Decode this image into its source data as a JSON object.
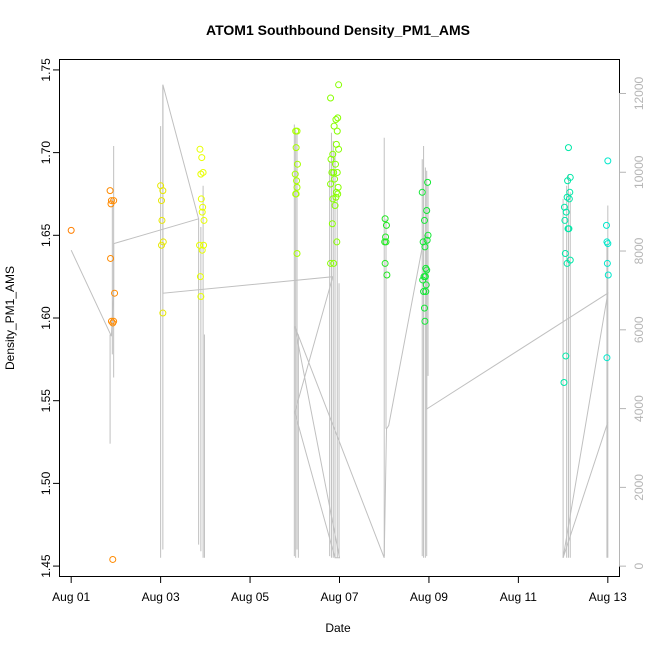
{
  "chart_data": {
    "type": "scatter",
    "title": "ATOM1 Southbound Density_PM1_AMS",
    "xlabel": "Date",
    "ylabel": "Density_PM1_AMS",
    "x_unit": "days (Aug 01 = 1)",
    "xlim": [
      0.75,
      13.25
    ],
    "ylim": [
      1.444,
      1.756
    ],
    "x_ticks": [
      {
        "label": "Aug 01",
        "value": 1
      },
      {
        "label": "Aug 03",
        "value": 3
      },
      {
        "label": "Aug 05",
        "value": 5
      },
      {
        "label": "Aug 07",
        "value": 7
      },
      {
        "label": "Aug 09",
        "value": 9
      },
      {
        "label": "Aug 11",
        "value": 11
      },
      {
        "label": "Aug 13",
        "value": 13
      }
    ],
    "y_ticks": [
      "1.45",
      "1.50",
      "1.55",
      "1.60",
      "1.65",
      "1.70",
      "1.75"
    ],
    "secondary_axis": {
      "ylim": [
        -250,
        12850
      ],
      "ticks": [
        "0",
        "2000",
        "4000",
        "6000",
        "8000",
        "10000",
        "12000"
      ],
      "color": "#b5b5b5"
    },
    "points": [
      {
        "x": 1.0,
        "y": 1.653,
        "color": "#ff7f00"
      },
      {
        "x": 1.87,
        "y": 1.677,
        "color": "#ff8a00"
      },
      {
        "x": 1.89,
        "y": 1.669,
        "color": "#ff8a00"
      },
      {
        "x": 1.9,
        "y": 1.671,
        "color": "#ff8a00"
      },
      {
        "x": 1.95,
        "y": 1.671,
        "color": "#ff8a00"
      },
      {
        "x": 1.88,
        "y": 1.636,
        "color": "#ff8a00"
      },
      {
        "x": 1.97,
        "y": 1.615,
        "color": "#ff8a00"
      },
      {
        "x": 1.9,
        "y": 1.598,
        "color": "#ff8a00"
      },
      {
        "x": 1.93,
        "y": 1.597,
        "color": "#ff8a00"
      },
      {
        "x": 1.95,
        "y": 1.598,
        "color": "#ff8a00"
      },
      {
        "x": 1.93,
        "y": 1.454,
        "color": "#ff8a00"
      },
      {
        "x": 3.0,
        "y": 1.68,
        "color": "#e8e800"
      },
      {
        "x": 3.05,
        "y": 1.677,
        "color": "#e8e800"
      },
      {
        "x": 3.02,
        "y": 1.671,
        "color": "#e8e800"
      },
      {
        "x": 3.03,
        "y": 1.659,
        "color": "#e8e800"
      },
      {
        "x": 3.02,
        "y": 1.644,
        "color": "#e8e800"
      },
      {
        "x": 3.06,
        "y": 1.646,
        "color": "#e8e800"
      },
      {
        "x": 3.05,
        "y": 1.603,
        "color": "#e8e800"
      },
      {
        "x": 3.88,
        "y": 1.702,
        "color": "#e8ff00"
      },
      {
        "x": 3.92,
        "y": 1.697,
        "color": "#e8ff00"
      },
      {
        "x": 3.9,
        "y": 1.687,
        "color": "#e8ff00"
      },
      {
        "x": 3.95,
        "y": 1.688,
        "color": "#e8ff00"
      },
      {
        "x": 3.91,
        "y": 1.672,
        "color": "#e8ff00"
      },
      {
        "x": 3.94,
        "y": 1.667,
        "color": "#e8ff00"
      },
      {
        "x": 3.93,
        "y": 1.664,
        "color": "#e8ff00"
      },
      {
        "x": 3.97,
        "y": 1.659,
        "color": "#e8ff00"
      },
      {
        "x": 3.87,
        "y": 1.644,
        "color": "#e8ff00"
      },
      {
        "x": 3.93,
        "y": 1.641,
        "color": "#e8ff00"
      },
      {
        "x": 3.96,
        "y": 1.644,
        "color": "#e8ff00"
      },
      {
        "x": 3.89,
        "y": 1.625,
        "color": "#e8ff00"
      },
      {
        "x": 3.9,
        "y": 1.613,
        "color": "#e8ff00"
      },
      {
        "x": 6.02,
        "y": 1.713,
        "color": "#a8ff00"
      },
      {
        "x": 6.05,
        "y": 1.713,
        "color": "#a8ff00"
      },
      {
        "x": 6.03,
        "y": 1.703,
        "color": "#a8ff00"
      },
      {
        "x": 6.06,
        "y": 1.693,
        "color": "#a8ff00"
      },
      {
        "x": 6.01,
        "y": 1.687,
        "color": "#a8ff00"
      },
      {
        "x": 6.04,
        "y": 1.683,
        "color": "#a8ff00"
      },
      {
        "x": 6.05,
        "y": 1.679,
        "color": "#a8ff00"
      },
      {
        "x": 6.02,
        "y": 1.675,
        "color": "#a8ff00"
      },
      {
        "x": 6.03,
        "y": 1.675,
        "color": "#a8ff00"
      },
      {
        "x": 6.05,
        "y": 1.639,
        "color": "#a8ff00"
      },
      {
        "x": 6.8,
        "y": 1.733,
        "color": "#88ff00"
      },
      {
        "x": 6.98,
        "y": 1.741,
        "color": "#88ff00"
      },
      {
        "x": 6.92,
        "y": 1.72,
        "color": "#88ff00"
      },
      {
        "x": 6.96,
        "y": 1.721,
        "color": "#88ff00"
      },
      {
        "x": 6.88,
        "y": 1.716,
        "color": "#88ff00"
      },
      {
        "x": 6.95,
        "y": 1.713,
        "color": "#88ff00"
      },
      {
        "x": 6.93,
        "y": 1.705,
        "color": "#88ff00"
      },
      {
        "x": 6.85,
        "y": 1.699,
        "color": "#88ff00"
      },
      {
        "x": 6.98,
        "y": 1.702,
        "color": "#88ff00"
      },
      {
        "x": 6.81,
        "y": 1.696,
        "color": "#88ff00"
      },
      {
        "x": 6.91,
        "y": 1.693,
        "color": "#88ff00"
      },
      {
        "x": 6.83,
        "y": 1.688,
        "color": "#88ff00"
      },
      {
        "x": 6.87,
        "y": 1.688,
        "color": "#88ff00"
      },
      {
        "x": 6.95,
        "y": 1.688,
        "color": "#88ff00"
      },
      {
        "x": 6.89,
        "y": 1.684,
        "color": "#88ff00"
      },
      {
        "x": 6.8,
        "y": 1.681,
        "color": "#88ff00"
      },
      {
        "x": 6.97,
        "y": 1.679,
        "color": "#88ff00"
      },
      {
        "x": 6.93,
        "y": 1.676,
        "color": "#88ff00"
      },
      {
        "x": 6.96,
        "y": 1.675,
        "color": "#88ff00"
      },
      {
        "x": 6.85,
        "y": 1.672,
        "color": "#88ff00"
      },
      {
        "x": 6.92,
        "y": 1.673,
        "color": "#88ff00"
      },
      {
        "x": 6.9,
        "y": 1.668,
        "color": "#88ff00"
      },
      {
        "x": 6.84,
        "y": 1.657,
        "color": "#88ff00"
      },
      {
        "x": 6.94,
        "y": 1.646,
        "color": "#88ff00"
      },
      {
        "x": 6.8,
        "y": 1.633,
        "color": "#88ff00"
      },
      {
        "x": 6.87,
        "y": 1.633,
        "color": "#88ff00"
      },
      {
        "x": 8.02,
        "y": 1.66,
        "color": "#22e822"
      },
      {
        "x": 8.05,
        "y": 1.656,
        "color": "#22e822"
      },
      {
        "x": 8.03,
        "y": 1.649,
        "color": "#22e822"
      },
      {
        "x": 8.01,
        "y": 1.646,
        "color": "#22e822"
      },
      {
        "x": 8.04,
        "y": 1.646,
        "color": "#22e822"
      },
      {
        "x": 8.02,
        "y": 1.633,
        "color": "#22e822"
      },
      {
        "x": 8.06,
        "y": 1.626,
        "color": "#22e822"
      },
      {
        "x": 8.85,
        "y": 1.676,
        "color": "#11e833"
      },
      {
        "x": 8.97,
        "y": 1.682,
        "color": "#11e833"
      },
      {
        "x": 8.95,
        "y": 1.665,
        "color": "#11e833"
      },
      {
        "x": 8.9,
        "y": 1.659,
        "color": "#11e833"
      },
      {
        "x": 8.98,
        "y": 1.65,
        "color": "#11e833"
      },
      {
        "x": 8.96,
        "y": 1.647,
        "color": "#11e833"
      },
      {
        "x": 8.87,
        "y": 1.646,
        "color": "#11e833"
      },
      {
        "x": 8.91,
        "y": 1.643,
        "color": "#11e833"
      },
      {
        "x": 8.93,
        "y": 1.63,
        "color": "#11e833"
      },
      {
        "x": 8.95,
        "y": 1.629,
        "color": "#11e833"
      },
      {
        "x": 8.89,
        "y": 1.625,
        "color": "#11e833"
      },
      {
        "x": 8.92,
        "y": 1.625,
        "color": "#11e833"
      },
      {
        "x": 8.86,
        "y": 1.623,
        "color": "#11e833"
      },
      {
        "x": 8.94,
        "y": 1.62,
        "color": "#11e833"
      },
      {
        "x": 8.88,
        "y": 1.616,
        "color": "#11e833"
      },
      {
        "x": 8.93,
        "y": 1.616,
        "color": "#11e833"
      },
      {
        "x": 8.9,
        "y": 1.606,
        "color": "#11e833"
      },
      {
        "x": 8.91,
        "y": 1.598,
        "color": "#11e833"
      },
      {
        "x": 12.12,
        "y": 1.703,
        "color": "#00e8a8"
      },
      {
        "x": 12.16,
        "y": 1.685,
        "color": "#00e8a8"
      },
      {
        "x": 12.1,
        "y": 1.683,
        "color": "#00e8a8"
      },
      {
        "x": 12.15,
        "y": 1.676,
        "color": "#00e8a8"
      },
      {
        "x": 12.09,
        "y": 1.673,
        "color": "#00e8a8"
      },
      {
        "x": 12.14,
        "y": 1.672,
        "color": "#00e8a8"
      },
      {
        "x": 12.03,
        "y": 1.667,
        "color": "#00e8a8"
      },
      {
        "x": 12.07,
        "y": 1.664,
        "color": "#00e8a8"
      },
      {
        "x": 12.04,
        "y": 1.659,
        "color": "#00e8a8"
      },
      {
        "x": 12.11,
        "y": 1.654,
        "color": "#00e8a8"
      },
      {
        "x": 12.13,
        "y": 1.654,
        "color": "#00e8a8"
      },
      {
        "x": 12.05,
        "y": 1.639,
        "color": "#00e8a8"
      },
      {
        "x": 12.16,
        "y": 1.635,
        "color": "#00e8a8"
      },
      {
        "x": 12.09,
        "y": 1.633,
        "color": "#00e8a8"
      },
      {
        "x": 12.06,
        "y": 1.577,
        "color": "#00e8a8"
      },
      {
        "x": 12.02,
        "y": 1.561,
        "color": "#00e8a8"
      },
      {
        "x": 13.0,
        "y": 1.695,
        "color": "#00e8cc"
      },
      {
        "x": 12.97,
        "y": 1.656,
        "color": "#00e8cc"
      },
      {
        "x": 12.98,
        "y": 1.646,
        "color": "#00e8cc"
      },
      {
        "x": 13.0,
        "y": 1.645,
        "color": "#00e8cc"
      },
      {
        "x": 12.99,
        "y": 1.633,
        "color": "#00e8cc"
      },
      {
        "x": 13.01,
        "y": 1.626,
        "color": "#00e8cc"
      },
      {
        "x": 12.98,
        "y": 1.576,
        "color": "#00e8cc"
      }
    ],
    "secondary_line": {
      "color": "#c0c0c0",
      "spikes": [
        {
          "x": 1.87,
          "top": 1.59,
          "bottom": 1.524
        },
        {
          "x": 1.92,
          "top": 1.672,
          "bottom": 1.578
        },
        {
          "x": 1.95,
          "top": 1.704,
          "bottom": 1.564
        },
        {
          "x": 3.0,
          "top": 1.716,
          "bottom": 1.455
        },
        {
          "x": 3.05,
          "top": 1.741,
          "bottom": 1.46
        },
        {
          "x": 3.85,
          "top": 1.66,
          "bottom": 1.463
        },
        {
          "x": 3.9,
          "top": 1.655,
          "bottom": 1.459
        },
        {
          "x": 3.95,
          "top": 1.68,
          "bottom": 1.455
        },
        {
          "x": 3.98,
          "top": 1.59,
          "bottom": 1.455
        },
        {
          "x": 5.99,
          "top": 1.717,
          "bottom": 1.456
        },
        {
          "x": 6.02,
          "top": 1.714,
          "bottom": 1.455
        },
        {
          "x": 6.05,
          "top": 1.712,
          "bottom": 1.46
        },
        {
          "x": 6.08,
          "top": 1.59,
          "bottom": 1.455
        },
        {
          "x": 6.78,
          "top": 1.695,
          "bottom": 1.456
        },
        {
          "x": 6.82,
          "top": 1.712,
          "bottom": 1.455
        },
        {
          "x": 6.86,
          "top": 1.707,
          "bottom": 1.455
        },
        {
          "x": 6.9,
          "top": 1.7,
          "bottom": 1.455
        },
        {
          "x": 6.95,
          "top": 1.672,
          "bottom": 1.455
        },
        {
          "x": 6.99,
          "top": 1.621,
          "bottom": 1.456
        },
        {
          "x": 8.0,
          "top": 1.709,
          "bottom": 1.456
        },
        {
          "x": 8.04,
          "top": 1.66,
          "bottom": 1.533
        },
        {
          "x": 8.85,
          "top": 1.696,
          "bottom": 1.456
        },
        {
          "x": 8.88,
          "top": 1.704,
          "bottom": 1.455
        },
        {
          "x": 8.92,
          "top": 1.691,
          "bottom": 1.455
        },
        {
          "x": 8.95,
          "top": 1.689,
          "bottom": 1.456
        },
        {
          "x": 8.98,
          "top": 1.68,
          "bottom": 1.565
        },
        {
          "x": 12.0,
          "top": 1.672,
          "bottom": 1.455
        },
        {
          "x": 12.08,
          "top": 1.68,
          "bottom": 1.455
        },
        {
          "x": 12.12,
          "top": 1.687,
          "bottom": 1.455
        },
        {
          "x": 12.16,
          "top": 1.676,
          "bottom": 1.455
        },
        {
          "x": 12.98,
          "top": 1.645,
          "bottom": 1.455
        },
        {
          "x": 13.0,
          "top": 1.668,
          "bottom": 1.455
        }
      ],
      "connectors": [
        [
          1.0,
          1.641
        ],
        [
          1.9,
          1.589
        ],
        [
          1.95,
          1.617
        ],
        [
          1.95,
          1.645
        ],
        [
          3.85,
          1.66
        ],
        [
          3.05,
          1.741
        ],
        [
          3.05,
          1.615
        ],
        [
          6.85,
          1.625
        ],
        [
          6.0,
          1.543
        ],
        [
          6.9,
          1.455
        ],
        [
          7.0,
          1.455
        ],
        [
          6.0,
          1.595
        ],
        [
          8.0,
          1.455
        ],
        [
          8.05,
          1.533
        ],
        [
          8.1,
          1.535
        ],
        [
          8.9,
          1.65
        ],
        [
          8.95,
          1.65
        ],
        [
          8.95,
          1.545
        ],
        [
          13.0,
          1.615
        ],
        [
          12.0,
          1.455
        ],
        [
          13.0,
          1.537
        ]
      ]
    }
  }
}
